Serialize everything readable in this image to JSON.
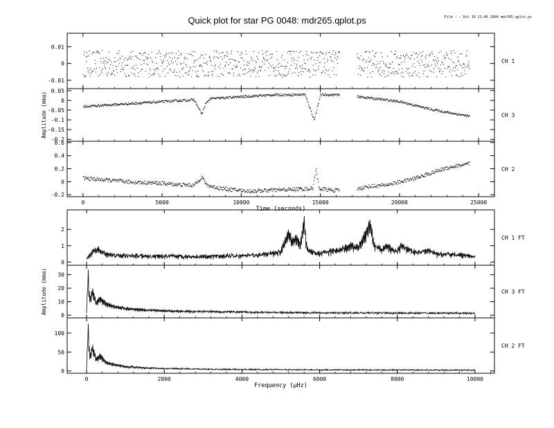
{
  "title": "Quick plot for star PG 0048:  mdr265.qplot.ps",
  "file_info": "File : : Oct 16 11:46 2004   mdr265.qplot.ps",
  "chart_data": [
    {
      "type": "scatter",
      "panel": "time-ch1",
      "channel_label": "CH 1",
      "xlim": [
        -1000,
        26000
      ],
      "ylim": [
        -0.015,
        0.018
      ],
      "yticks": [
        -0.01,
        0,
        0.01
      ],
      "ytick_labels": [
        "-0.01",
        "0",
        "0.01"
      ],
      "xticks": [
        0,
        5000,
        10000,
        15000,
        20000,
        25000
      ],
      "show_xtick_labels": false,
      "gap": [
        16200,
        17300
      ],
      "x": [
        0,
        2500,
        5000,
        7500,
        10000,
        12500,
        15000,
        16100,
        17400,
        20000,
        22500,
        24400
      ],
      "y": [
        0,
        0,
        0,
        0,
        0,
        0,
        0,
        0,
        0,
        0,
        0,
        0
      ],
      "scatter_amplitude": 0.008
    },
    {
      "type": "scatter",
      "panel": "time-ch3",
      "channel_label": "CH 3",
      "ylabel": "Amplitude (mma)",
      "xlim": [
        -1000,
        26000
      ],
      "ylim": [
        -0.21,
        0.06
      ],
      "yticks": [
        -0.2,
        -0.15,
        -0.1,
        -0.05,
        0,
        0.05
      ],
      "ytick_labels": [
        "-0.2",
        "-0.15",
        "-0.1",
        "-0.05",
        "0",
        "0.05"
      ],
      "xticks": [
        0,
        5000,
        10000,
        15000,
        20000,
        25000
      ],
      "show_xtick_labels": false,
      "gap": [
        16200,
        17300
      ],
      "x": [
        0,
        1000,
        2000,
        3000,
        4000,
        5000,
        6000,
        7000,
        7500,
        7700,
        8000,
        9000,
        10000,
        11000,
        12000,
        13000,
        14000,
        14600,
        14800,
        15000,
        16000,
        17400,
        18000,
        19000,
        20000,
        21000,
        22000,
        23000,
        24400
      ],
      "y": [
        -0.03,
        -0.025,
        -0.02,
        -0.015,
        -0.01,
        -0.005,
        0,
        0.005,
        -0.07,
        -0.02,
        0.01,
        0.015,
        0.02,
        0.025,
        0.03,
        0.03,
        0.032,
        -0.1,
        -0.03,
        0.03,
        0.03,
        0.02,
        0.015,
        0.005,
        -0.005,
        -0.025,
        -0.045,
        -0.06,
        -0.08
      ],
      "scatter_amplitude": 0.006
    },
    {
      "type": "scatter",
      "panel": "time-ch2",
      "channel_label": "CH 2",
      "xlabel": "Time (seconds)",
      "xlim": [
        -1000,
        26000
      ],
      "ylim": [
        -0.23,
        0.62
      ],
      "yticks": [
        -0.2,
        0,
        0.2,
        0.4,
        0.6
      ],
      "ytick_labels": [
        "-0.2",
        "0",
        "0.2",
        "0.4",
        "0.6"
      ],
      "xticks": [
        0,
        5000,
        10000,
        15000,
        20000,
        25000
      ],
      "xtick_labels": [
        "0",
        "5000",
        "10000",
        "15000",
        "20000",
        "25000"
      ],
      "show_xtick_labels": true,
      "gap": [
        16200,
        17300
      ],
      "x": [
        0,
        1000,
        2000,
        3000,
        4000,
        5000,
        6000,
        7000,
        7500,
        7800,
        8500,
        9500,
        10500,
        11500,
        12500,
        13500,
        14500,
        14700,
        14900,
        15500,
        16000,
        17400,
        18000,
        19000,
        20000,
        21000,
        22000,
        23000,
        24400
      ],
      "y": [
        0.06,
        0.04,
        0.02,
        0.0,
        -0.01,
        -0.02,
        -0.04,
        -0.05,
        0.08,
        -0.05,
        -0.09,
        -0.12,
        -0.14,
        -0.13,
        -0.12,
        -0.11,
        -0.1,
        0.2,
        -0.1,
        -0.12,
        -0.13,
        -0.1,
        -0.07,
        -0.05,
        0.0,
        0.06,
        0.14,
        0.22,
        0.28
      ],
      "scatter_amplitude": 0.03
    },
    {
      "type": "line",
      "panel": "ft-ch1",
      "channel_label": "CH 1 FT",
      "xlim": [
        -500,
        10500
      ],
      "ylim": [
        -0.2,
        3.2
      ],
      "yticks": [
        0,
        1,
        2
      ],
      "ytick_labels": [
        "0",
        "1",
        "2"
      ],
      "xticks": [
        0,
        2000,
        4000,
        6000,
        8000,
        10000
      ],
      "show_xtick_labels": false,
      "x": [
        0,
        150,
        300,
        500,
        1000,
        2000,
        3000,
        4000,
        4500,
        5000,
        5200,
        5300,
        5400,
        5500,
        5600,
        5650,
        5700,
        6000,
        6500,
        6800,
        7000,
        7200,
        7300,
        7400,
        7600,
        7700,
        8000,
        8100,
        8500,
        8800,
        9000,
        9500,
        10000
      ],
      "y": [
        0.0,
        0.6,
        0.8,
        0.4,
        0.3,
        0.25,
        0.25,
        0.3,
        0.35,
        0.6,
        1.9,
        1.3,
        1.6,
        1.0,
        2.8,
        1.2,
        0.6,
        0.5,
        0.7,
        1.0,
        0.9,
        1.9,
        2.6,
        1.1,
        0.7,
        1.0,
        0.6,
        1.0,
        0.5,
        0.7,
        0.4,
        0.4,
        0.2
      ],
      "noise_amplitude": 0.25
    },
    {
      "type": "line",
      "panel": "ft-ch3",
      "channel_label": "CH 3 FT",
      "ylabel": "Amplitude (mma)",
      "xlim": [
        -500,
        10500
      ],
      "ylim": [
        -2,
        37
      ],
      "yticks": [
        0,
        10,
        20,
        30
      ],
      "ytick_labels": [
        "0",
        "10",
        "20",
        "30"
      ],
      "xticks": [
        0,
        2000,
        4000,
        6000,
        8000,
        10000
      ],
      "show_xtick_labels": false,
      "x": [
        0,
        40,
        80,
        150,
        250,
        350,
        500,
        700,
        1000,
        1500,
        2000,
        3000,
        4000,
        5000,
        6000,
        8000,
        10000
      ],
      "y": [
        2,
        34,
        12,
        20,
        10,
        14,
        9,
        7,
        5,
        4,
        3,
        2.5,
        2,
        1.6,
        1.4,
        1.2,
        1.0
      ],
      "noise_amplitude": 1.2
    },
    {
      "type": "line",
      "panel": "ft-ch2",
      "channel_label": "CH 2 FT",
      "xlabel": "Frequency (μHz)",
      "xlim": [
        -500,
        10500
      ],
      "ylim": [
        -6,
        140
      ],
      "yticks": [
        0,
        50,
        100
      ],
      "ytick_labels": [
        "0",
        "50",
        "100"
      ],
      "xticks": [
        0,
        2000,
        4000,
        6000,
        8000,
        10000
      ],
      "xtick_labels": [
        "0",
        "2000",
        "4000",
        "6000",
        "8000",
        "10000"
      ],
      "show_xtick_labels": true,
      "x": [
        0,
        40,
        80,
        150,
        250,
        350,
        500,
        700,
        1000,
        1500,
        2000,
        3000,
        4000,
        5000,
        6000,
        8000,
        10000
      ],
      "y": [
        5,
        130,
        40,
        70,
        35,
        45,
        25,
        18,
        12,
        8,
        6,
        4,
        3,
        2.5,
        2,
        1.5,
        1.2
      ],
      "noise_amplitude": 3
    }
  ]
}
